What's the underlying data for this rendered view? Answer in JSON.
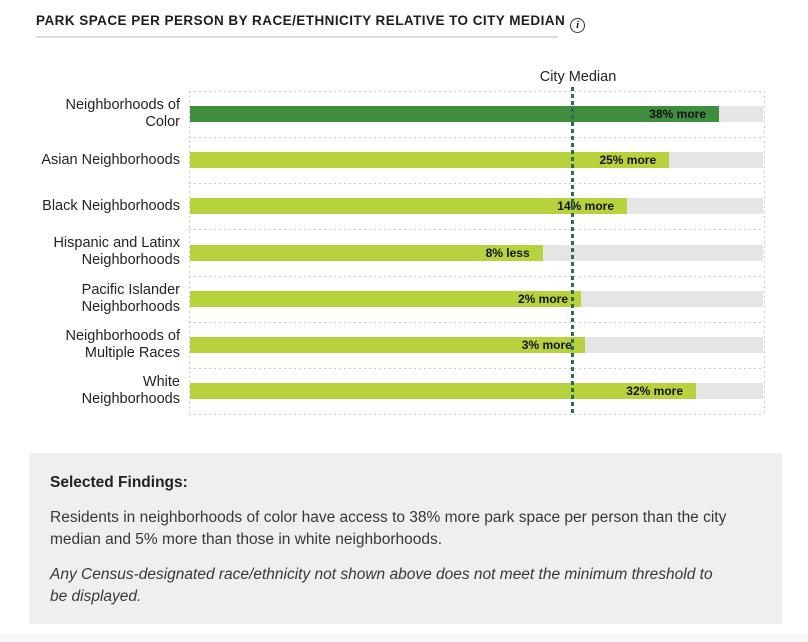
{
  "title": {
    "text": "PARK SPACE PER PERSON BY RACE/ETHNICITY RELATIVE TO CITY MEDIAN"
  },
  "chart_data": {
    "type": "bar",
    "orientation": "horizontal",
    "title": "PARK SPACE PER PERSON BY RACE/ETHNICITY RELATIVE TO CITY MEDIAN",
    "median_label": "City Median",
    "axis": {
      "min_ratio": 0,
      "max_ratio": 1.5,
      "median_ratio": 1.0,
      "grid": "dotted"
    },
    "categories": [
      "Neighborhoods of Color",
      "Asian Neighborhoods",
      "Black Neighborhoods",
      "Hispanic and Latinx Neighborhoods",
      "Pacific Islander Neighborhoods",
      "Neighborhoods of Multiple Races",
      "White Neighborhoods"
    ],
    "values_pct_vs_median": [
      38,
      25,
      14,
      -8,
      2,
      3,
      32
    ],
    "rows": [
      {
        "label_lines": [
          "Neighborhoods of",
          "Color"
        ],
        "value_label": "38% more",
        "pct": 38,
        "ratio": 1.38,
        "color_key": "dark_green"
      },
      {
        "label_lines": [
          "Asian Neighborhoods"
        ],
        "value_label": "25% more",
        "pct": 25,
        "ratio": 1.25,
        "color_key": "light_green"
      },
      {
        "label_lines": [
          "Black Neighborhoods"
        ],
        "value_label": "14% more",
        "pct": 14,
        "ratio": 1.14,
        "color_key": "light_green"
      },
      {
        "label_lines": [
          "Hispanic and Latinx",
          "Neighborhoods"
        ],
        "value_label": "8% less",
        "pct": -8,
        "ratio": 0.92,
        "color_key": "light_green"
      },
      {
        "label_lines": [
          "Pacific Islander",
          "Neighborhoods"
        ],
        "value_label": "2% more",
        "pct": 2,
        "ratio": 1.02,
        "color_key": "light_green"
      },
      {
        "label_lines": [
          "Neighborhoods of",
          "Multiple Races"
        ],
        "value_label": "3% more",
        "pct": 3,
        "ratio": 1.03,
        "color_key": "light_green"
      },
      {
        "label_lines": [
          "White",
          "Neighborhoods"
        ],
        "value_label": "32% more",
        "pct": 32,
        "ratio": 1.32,
        "color_key": "light_green"
      }
    ],
    "colors": {
      "dark_green": "#3f8d3f",
      "light_green": "#b7d23c",
      "track": "#e5e5e5",
      "median_line": "#2b6e50",
      "grid": "#cdcdcd"
    }
  },
  "findings": {
    "heading": "Selected Findings:",
    "body": "Residents in neighborhoods of color have access to 38% more park space per person than the city median and 5% more than those in white neighborhoods.",
    "note": "Any Census-designated race/ethnicity not shown above does not meet the minimum threshold to be displayed."
  }
}
